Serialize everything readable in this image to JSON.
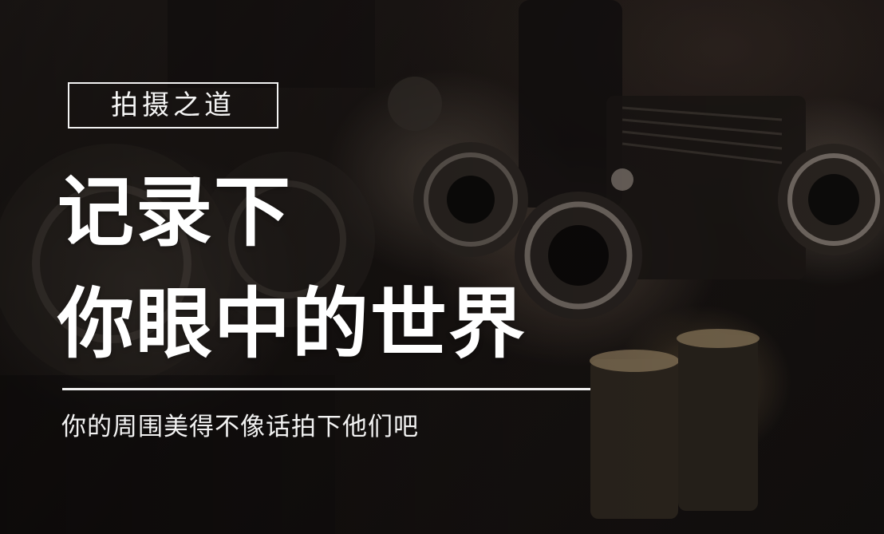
{
  "tag": {
    "label": "拍摄之道"
  },
  "headline": {
    "line1": "记录下",
    "line2": "你眼中的世界"
  },
  "subtitle": {
    "text": "你的周围美得不像话拍下他们吧"
  },
  "background": {
    "subject": "vintage-cameras-photo",
    "tone": "#1a1513"
  }
}
